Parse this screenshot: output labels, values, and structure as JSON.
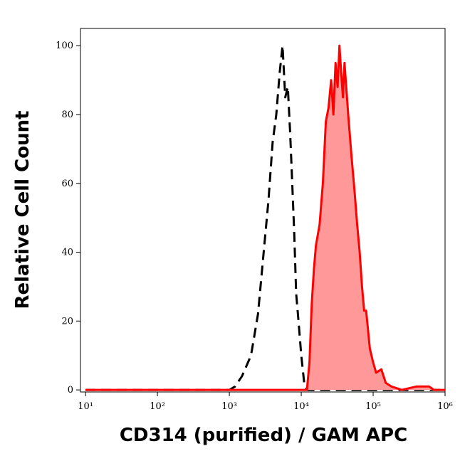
{
  "chart_data": {
    "type": "histogram-overlay",
    "x_label": "CD314 (purified) / GAM APC",
    "y_label": "Relative Cell Count",
    "x_scale": "log",
    "xlim": [
      8.5,
      1000000
    ],
    "xticks": [
      {
        "value": 10,
        "label": "10¹"
      },
      {
        "value": 100,
        "label": "10²"
      },
      {
        "value": 1000,
        "label": "10³"
      },
      {
        "value": 10000,
        "label": "10⁴"
      },
      {
        "value": 100000,
        "label": "10⁵"
      },
      {
        "value": 1000000,
        "label": "10⁶"
      }
    ],
    "ylim": [
      -0.6,
      105
    ],
    "yticks": [
      0,
      20,
      40,
      60,
      80,
      100
    ],
    "series": [
      {
        "color": "#000000",
        "dashed": true,
        "filled": false,
        "x": [
          10,
          1000,
          1200,
          1500,
          2000,
          2500,
          3000,
          3500,
          4000,
          4500,
          5000,
          5500,
          6000,
          6500,
          7000,
          7500,
          8000,
          8500,
          9000,
          10000,
          11000,
          12000,
          1000000
        ],
        "values": [
          0,
          0,
          1,
          4,
          10,
          22,
          40,
          55,
          72,
          80,
          92,
          100,
          85,
          88,
          75,
          60,
          45,
          28,
          22,
          10,
          2,
          0,
          0
        ]
      },
      {
        "color": "#ff0000",
        "fill": "#ff9999",
        "dashed": false,
        "filled": true,
        "x": [
          10,
          12000,
          13000,
          14000,
          15000,
          16000,
          18000,
          20000,
          22000,
          24000,
          26000,
          28000,
          30000,
          32000,
          34000,
          36000,
          38000,
          40000,
          45000,
          50000,
          55000,
          60000,
          65000,
          70000,
          75000,
          80000,
          90000,
          100000,
          110000,
          130000,
          150000,
          180000,
          250000,
          400000,
          600000,
          700000,
          1000000
        ],
        "values": [
          0,
          0,
          8,
          25,
          35,
          42,
          48,
          60,
          78,
          82,
          90,
          80,
          95,
          88,
          100,
          92,
          85,
          95,
          80,
          68,
          58,
          48,
          40,
          30,
          23,
          23,
          12,
          8,
          5,
          6,
          2,
          1,
          0,
          1,
          1,
          0,
          0
        ]
      }
    ]
  }
}
